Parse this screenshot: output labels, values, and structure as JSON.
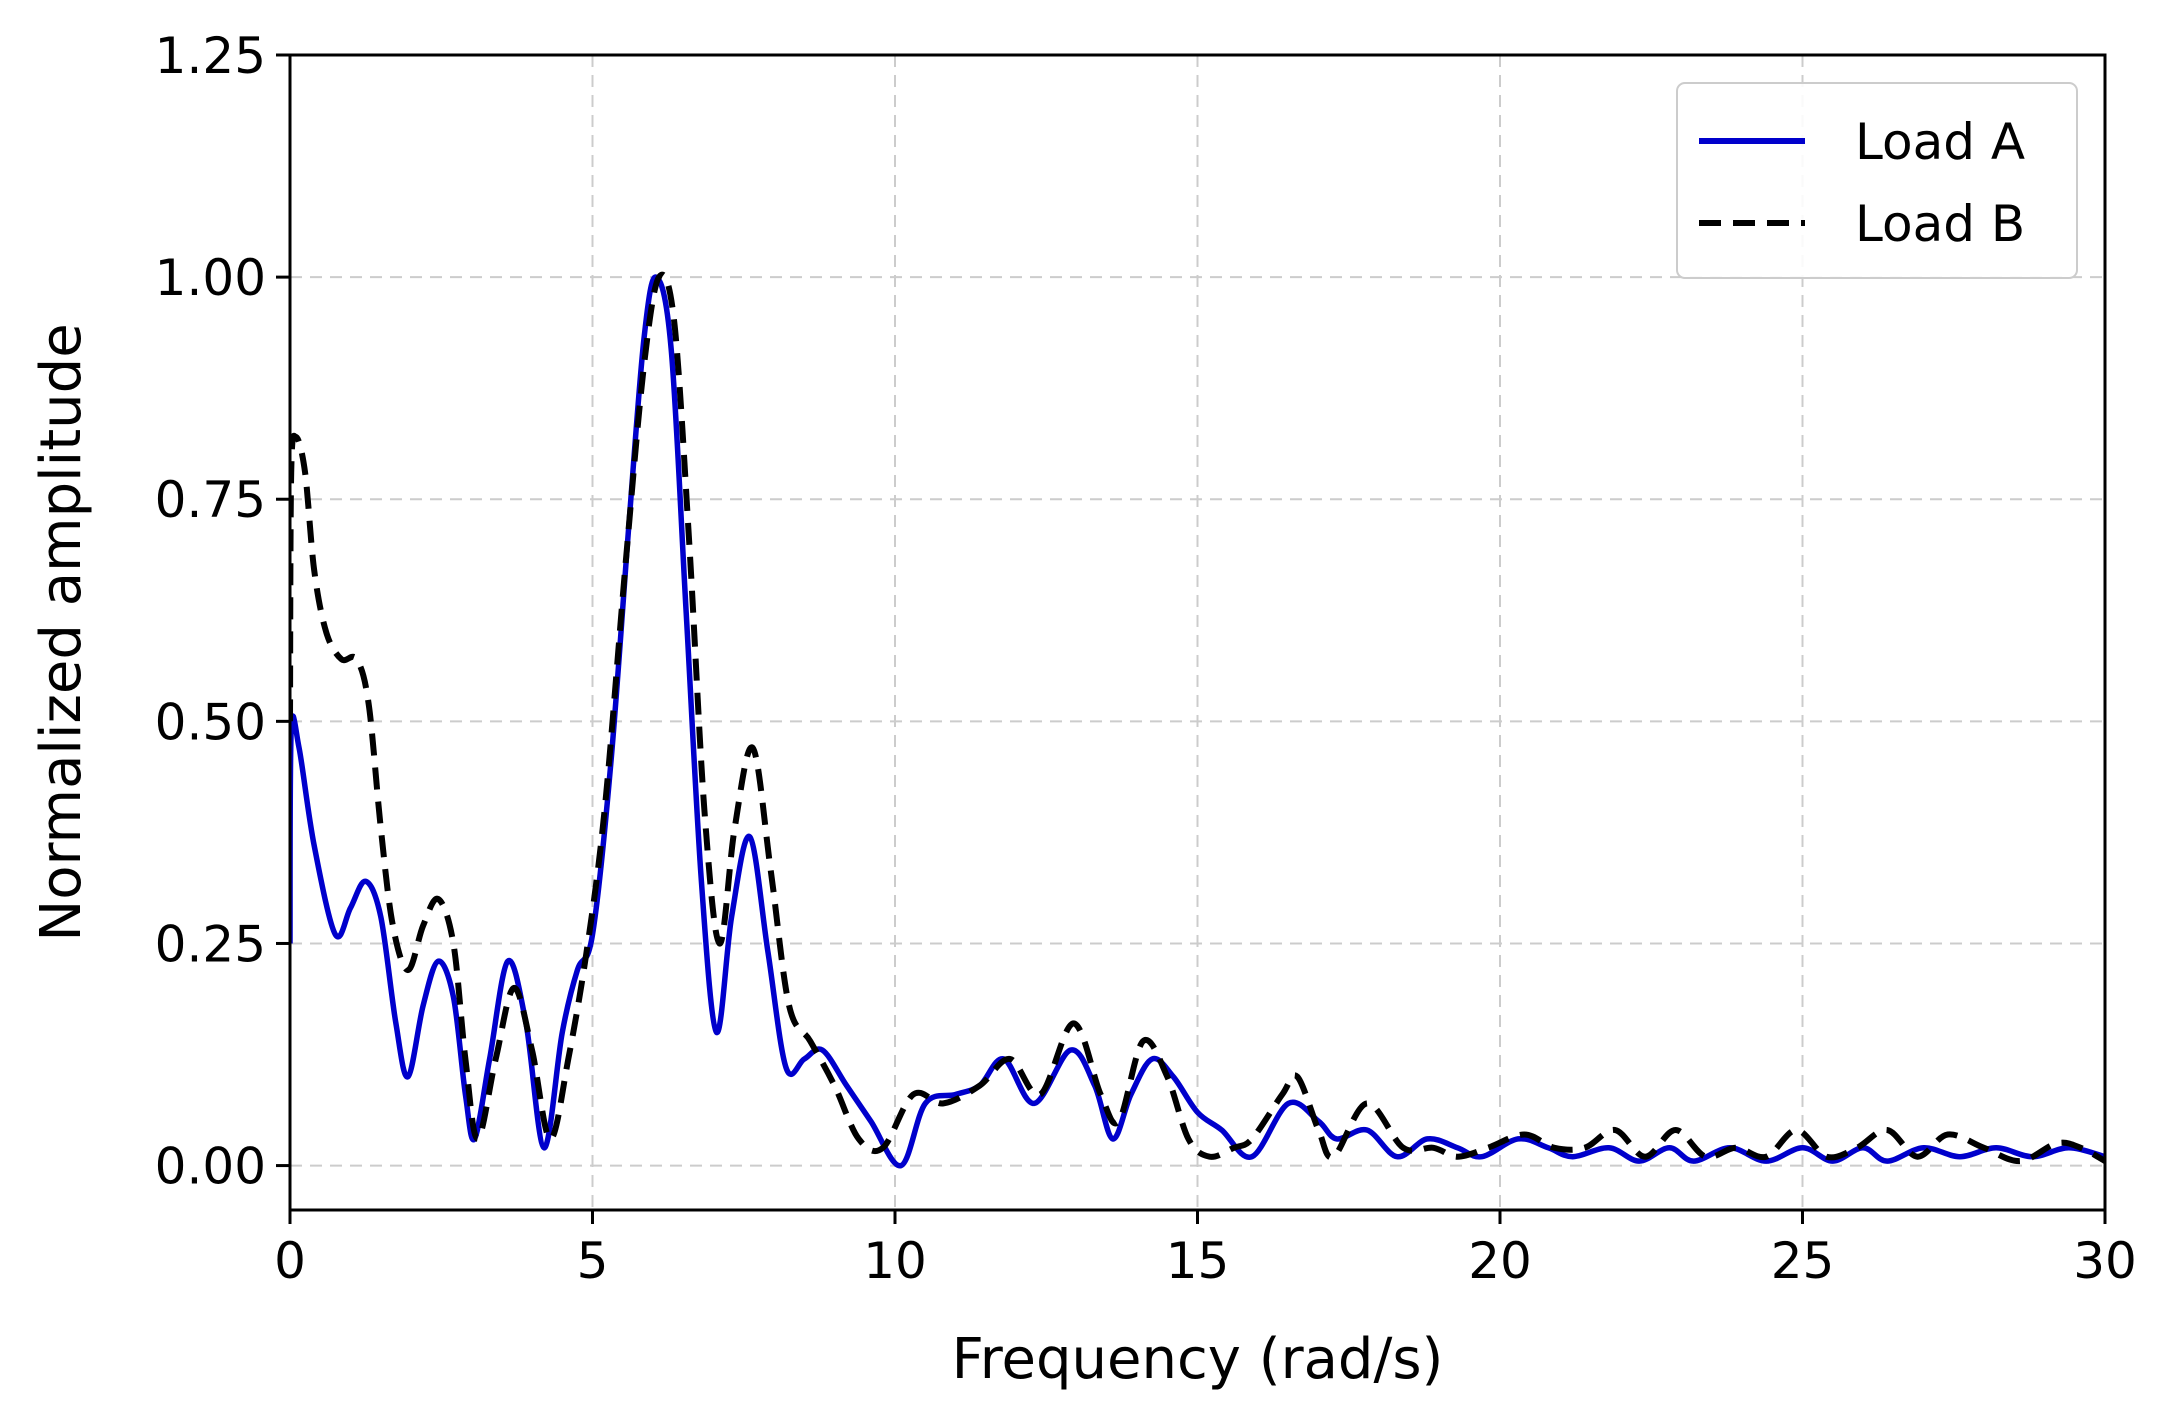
{
  "chart_data": {
    "type": "line",
    "title": "",
    "xlabel": "Frequency (rad/s)",
    "ylabel": "Normalized amplitude",
    "xlim": [
      0,
      30
    ],
    "ylim": [
      -0.05,
      1.25
    ],
    "xticks": [
      {
        "value": 0,
        "label": "0"
      },
      {
        "value": 5,
        "label": "5"
      },
      {
        "value": 10,
        "label": "10"
      },
      {
        "value": 15,
        "label": "15"
      },
      {
        "value": 20,
        "label": "20"
      },
      {
        "value": 25,
        "label": "25"
      },
      {
        "value": 30,
        "label": "30"
      }
    ],
    "yticks": [
      {
        "value": 0.0,
        "label": "0.00"
      },
      {
        "value": 0.25,
        "label": "0.25"
      },
      {
        "value": 0.5,
        "label": "0.50"
      },
      {
        "value": 0.75,
        "label": "0.75"
      },
      {
        "value": 1.0,
        "label": "1.00"
      },
      {
        "value": 1.25,
        "label": "1.25"
      }
    ],
    "grid": true,
    "legend_position": "top-right",
    "series": [
      {
        "name": "Load A",
        "color": "#0000cc",
        "style": "solid",
        "points": [
          [
            0.0,
            0.25
          ],
          [
            0.02,
            0.49
          ],
          [
            0.15,
            0.47
          ],
          [
            0.4,
            0.36
          ],
          [
            0.75,
            0.26
          ],
          [
            1.0,
            0.29
          ],
          [
            1.25,
            0.32
          ],
          [
            1.5,
            0.28
          ],
          [
            1.75,
            0.16
          ],
          [
            1.95,
            0.1
          ],
          [
            2.2,
            0.18
          ],
          [
            2.45,
            0.23
          ],
          [
            2.7,
            0.19
          ],
          [
            2.9,
            0.08
          ],
          [
            3.05,
            0.03
          ],
          [
            3.3,
            0.12
          ],
          [
            3.6,
            0.23
          ],
          [
            3.9,
            0.16
          ],
          [
            4.2,
            0.02
          ],
          [
            4.5,
            0.15
          ],
          [
            4.75,
            0.22
          ],
          [
            5.0,
            0.26
          ],
          [
            5.3,
            0.45
          ],
          [
            5.6,
            0.72
          ],
          [
            5.85,
            0.93
          ],
          [
            6.05,
            1.0
          ],
          [
            6.3,
            0.92
          ],
          [
            6.55,
            0.62
          ],
          [
            6.8,
            0.32
          ],
          [
            7.05,
            0.15
          ],
          [
            7.3,
            0.28
          ],
          [
            7.6,
            0.37
          ],
          [
            7.9,
            0.24
          ],
          [
            8.2,
            0.11
          ],
          [
            8.5,
            0.12
          ],
          [
            8.8,
            0.13
          ],
          [
            9.2,
            0.09
          ],
          [
            9.6,
            0.05
          ],
          [
            10.1,
            0.0
          ],
          [
            10.5,
            0.07
          ],
          [
            11.0,
            0.08
          ],
          [
            11.4,
            0.09
          ],
          [
            11.8,
            0.12
          ],
          [
            12.3,
            0.07
          ],
          [
            12.9,
            0.13
          ],
          [
            13.3,
            0.09
          ],
          [
            13.6,
            0.03
          ],
          [
            13.9,
            0.08
          ],
          [
            14.25,
            0.12
          ],
          [
            14.6,
            0.1
          ],
          [
            15.0,
            0.06
          ],
          [
            15.4,
            0.04
          ],
          [
            15.9,
            0.01
          ],
          [
            16.5,
            0.07
          ],
          [
            17.0,
            0.05
          ],
          [
            17.3,
            0.03
          ],
          [
            17.8,
            0.04
          ],
          [
            18.3,
            0.01
          ],
          [
            18.8,
            0.03
          ],
          [
            19.3,
            0.02
          ],
          [
            19.7,
            0.01
          ],
          [
            20.3,
            0.03
          ],
          [
            20.8,
            0.02
          ],
          [
            21.2,
            0.01
          ],
          [
            21.8,
            0.02
          ],
          [
            22.3,
            0.005
          ],
          [
            22.8,
            0.02
          ],
          [
            23.2,
            0.005
          ],
          [
            23.8,
            0.02
          ],
          [
            24.4,
            0.005
          ],
          [
            25.0,
            0.02
          ],
          [
            25.5,
            0.005
          ],
          [
            26.0,
            0.02
          ],
          [
            26.4,
            0.005
          ],
          [
            27.0,
            0.02
          ],
          [
            27.6,
            0.01
          ],
          [
            28.2,
            0.02
          ],
          [
            28.8,
            0.01
          ],
          [
            29.4,
            0.02
          ],
          [
            30.0,
            0.01
          ]
        ]
      },
      {
        "name": "Load B",
        "color": "#000000",
        "style": "dashed",
        "points": [
          [
            0.0,
            0.5
          ],
          [
            0.02,
            0.78
          ],
          [
            0.1,
            0.82
          ],
          [
            0.25,
            0.78
          ],
          [
            0.4,
            0.67
          ],
          [
            0.6,
            0.6
          ],
          [
            0.85,
            0.57
          ],
          [
            1.1,
            0.57
          ],
          [
            1.3,
            0.52
          ],
          [
            1.5,
            0.38
          ],
          [
            1.7,
            0.27
          ],
          [
            1.95,
            0.22
          ],
          [
            2.2,
            0.27
          ],
          [
            2.45,
            0.3
          ],
          [
            2.7,
            0.25
          ],
          [
            2.9,
            0.12
          ],
          [
            3.1,
            0.03
          ],
          [
            3.4,
            0.12
          ],
          [
            3.7,
            0.2
          ],
          [
            4.0,
            0.13
          ],
          [
            4.3,
            0.03
          ],
          [
            4.6,
            0.12
          ],
          [
            4.9,
            0.24
          ],
          [
            5.2,
            0.4
          ],
          [
            5.55,
            0.68
          ],
          [
            5.85,
            0.9
          ],
          [
            6.1,
            1.0
          ],
          [
            6.35,
            0.95
          ],
          [
            6.6,
            0.7
          ],
          [
            6.85,
            0.4
          ],
          [
            7.1,
            0.25
          ],
          [
            7.35,
            0.38
          ],
          [
            7.65,
            0.47
          ],
          [
            7.95,
            0.33
          ],
          [
            8.25,
            0.18
          ],
          [
            8.6,
            0.14
          ],
          [
            9.0,
            0.09
          ],
          [
            9.4,
            0.03
          ],
          [
            9.8,
            0.02
          ],
          [
            10.3,
            0.08
          ],
          [
            10.8,
            0.07
          ],
          [
            11.4,
            0.09
          ],
          [
            11.9,
            0.12
          ],
          [
            12.4,
            0.08
          ],
          [
            12.95,
            0.16
          ],
          [
            13.4,
            0.08
          ],
          [
            13.7,
            0.05
          ],
          [
            14.1,
            0.14
          ],
          [
            14.5,
            0.1
          ],
          [
            14.85,
            0.03
          ],
          [
            15.2,
            0.01
          ],
          [
            15.6,
            0.02
          ],
          [
            15.9,
            0.03
          ],
          [
            16.4,
            0.08
          ],
          [
            16.65,
            0.1
          ],
          [
            17.0,
            0.04
          ],
          [
            17.25,
            0.01
          ],
          [
            17.8,
            0.07
          ],
          [
            18.4,
            0.02
          ],
          [
            18.9,
            0.02
          ],
          [
            19.3,
            0.01
          ],
          [
            19.8,
            0.02
          ],
          [
            20.4,
            0.035
          ],
          [
            20.9,
            0.02
          ],
          [
            21.4,
            0.02
          ],
          [
            21.9,
            0.04
          ],
          [
            22.4,
            0.01
          ],
          [
            22.9,
            0.04
          ],
          [
            23.4,
            0.01
          ],
          [
            23.9,
            0.02
          ],
          [
            24.4,
            0.01
          ],
          [
            24.9,
            0.04
          ],
          [
            25.4,
            0.01
          ],
          [
            25.9,
            0.02
          ],
          [
            26.4,
            0.04
          ],
          [
            26.9,
            0.01
          ],
          [
            27.4,
            0.035
          ],
          [
            28.0,
            0.02
          ],
          [
            28.6,
            0.005
          ],
          [
            29.2,
            0.025
          ],
          [
            29.6,
            0.02
          ],
          [
            30.0,
            0.005
          ]
        ]
      }
    ]
  }
}
